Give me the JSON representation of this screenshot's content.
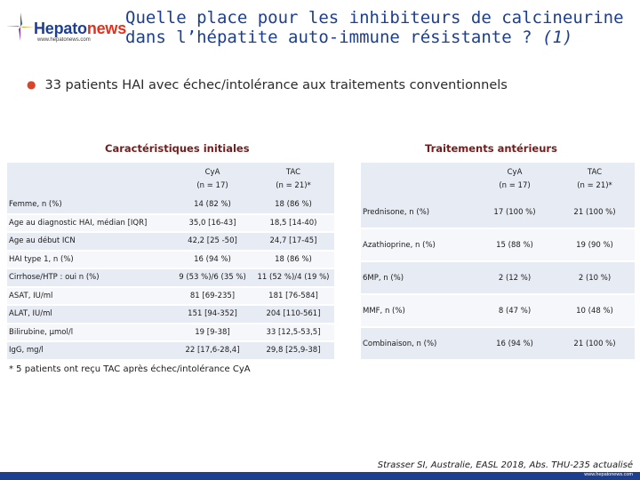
{
  "logo": {
    "brand_prefix": "Hepato",
    "brand_suffix": "news",
    "url": "www.hepatonews.com"
  },
  "title": {
    "line1": "Quelle place pour les inhibiteurs de calcineurine",
    "line2_main": "dans l’hépatite auto-immune résistante ? ",
    "line2_ref": "(1)"
  },
  "bullet": "33 patients HAI avec échec/intolérance aux traitements conventionnels",
  "left_panel": {
    "title": "Caractéristiques initiales",
    "headers": [
      "",
      "CyA\n(n = 17)",
      "TAC\n(n = 21)*"
    ],
    "rows": [
      [
        "Femme, n (%)",
        "14 (82 %)",
        "18 (86 %)"
      ],
      [
        "Age au diagnostic HAI, médian [IQR]",
        "35,0 [16-43]",
        "18,5 [14-40)"
      ],
      [
        "Age au début ICN",
        "42,2 [25 -50]",
        "24,7 [17-45]"
      ],
      [
        "HAI type 1, n (%)",
        "16 (94 %)",
        "18 (86 %)"
      ],
      [
        "Cirrhose/HTP : oui n (%)",
        "9 (53 %)/6 (35 %)",
        "11 (52 %)/4 (19 %)"
      ],
      [
        "ASAT, IU/ml",
        "81 [69-235]",
        "181 [76-584]"
      ],
      [
        "ALAT, IU/ml",
        "151 [94-352]",
        "204 [110-561]"
      ],
      [
        "Bilirubine, µmol/l",
        "19 [9-38]",
        "33 [12,5-53,5]"
      ],
      [
        "IgG, mg/l",
        "22 [17,6-28,4]",
        "29,8 [25,9-38]"
      ]
    ]
  },
  "right_panel": {
    "title": "Traitements antérieurs",
    "headers": [
      "",
      "CyA\n(n = 17)",
      "TAC\n(n = 21)*"
    ],
    "rows": [
      [
        "Prednisone, n (%)",
        "17 (100 %)",
        "21 (100 %)"
      ],
      [
        "Azathioprine, n (%)",
        "15 (88 %)",
        "19 (90 %)"
      ],
      [
        "6MP, n (%)",
        "2 (12 %)",
        "2 (10 %)"
      ],
      [
        "MMF, n (%)",
        "8 (47 %)",
        "10 (48 %)"
      ],
      [
        "Combinaison, n (%)",
        "16 (94 %)",
        "21 (100 %)"
      ]
    ]
  },
  "footnote": "* 5 patients ont reçu TAC après échec/intolérance CyA",
  "source": "Strasser SI, Australie, EASL 2018, Abs. THU-235 actualisé",
  "footer_url": "www.hepatonews.com",
  "colors": {
    "title_blue": "#1e3f8f",
    "panel_title_red": "#7a1b1b",
    "bullet_red": "#d8432b",
    "table_stripe": "#e7ebf3"
  }
}
